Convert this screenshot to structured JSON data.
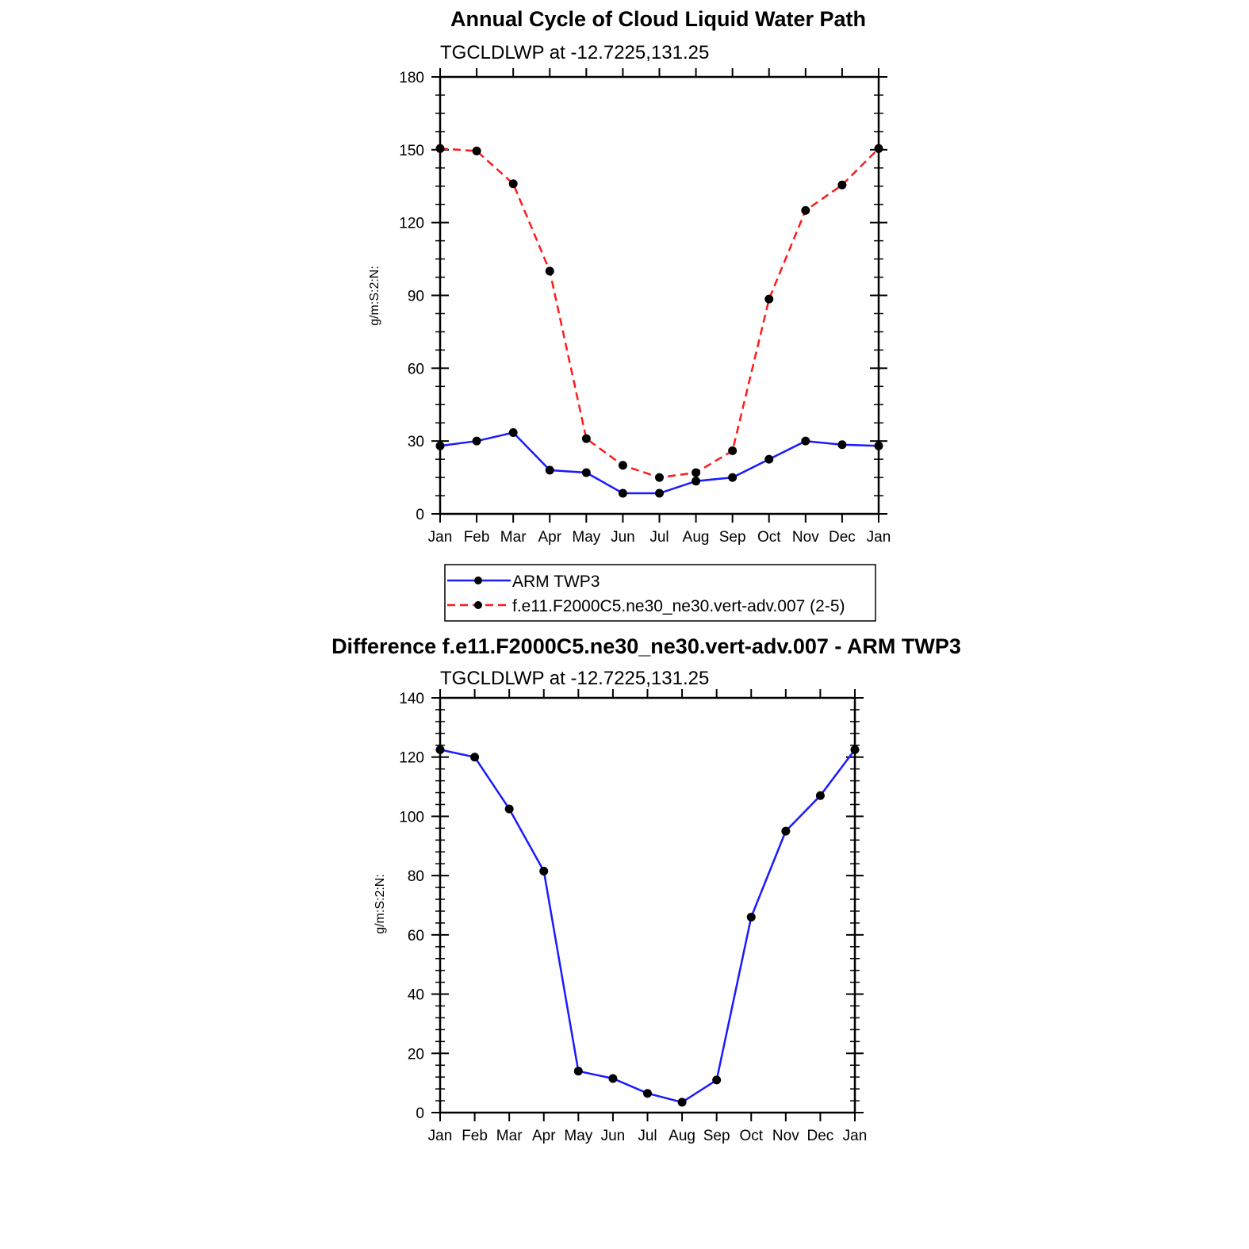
{
  "chart_data": [
    {
      "type": "line",
      "title": "Annual Cycle of Cloud Liquid Water Path",
      "subtitle": "TGCLDLWP at -12.7225,131.25",
      "xlabel": "",
      "ylabel": "g/m:S:2:N:",
      "categories": [
        "Jan",
        "Feb",
        "Mar",
        "Apr",
        "May",
        "Jun",
        "Jul",
        "Aug",
        "Sep",
        "Oct",
        "Nov",
        "Dec",
        "Jan"
      ],
      "ylim": [
        0,
        180
      ],
      "yticks": [
        0,
        30,
        60,
        90,
        120,
        150,
        180
      ],
      "grid": false,
      "legend_position": "bottom",
      "series": [
        {
          "name": "ARM TWP3",
          "color": "#1a1aff",
          "dashed": false,
          "values": [
            28,
            30,
            33.5,
            18,
            17,
            8.5,
            8.5,
            13.5,
            15,
            22.5,
            30,
            28.5,
            28
          ]
        },
        {
          "name": "f.e11.F2000C5.ne30_ne30.vert-adv.007 (2-5)",
          "color": "#ff1a1a",
          "dashed": true,
          "values": [
            150.5,
            149.5,
            136,
            100,
            31,
            20,
            15,
            17,
            26,
            88.5,
            125,
            135.5,
            150.5
          ]
        }
      ]
    },
    {
      "type": "line",
      "title": "Difference f.e11.F2000C5.ne30_ne30.vert-adv.007 - ARM TWP3",
      "subtitle": "TGCLDLWP at -12.7225,131.25",
      "xlabel": "",
      "ylabel": "g/m:S:2:N:",
      "categories": [
        "Jan",
        "Feb",
        "Mar",
        "Apr",
        "May",
        "Jun",
        "Jul",
        "Aug",
        "Sep",
        "Oct",
        "Nov",
        "Dec",
        "Jan"
      ],
      "ylim": [
        0,
        140
      ],
      "yticks": [
        0,
        20,
        40,
        60,
        80,
        100,
        120,
        140
      ],
      "grid": false,
      "series": [
        {
          "color": "#1a1aff",
          "dashed": false,
          "values": [
            122.5,
            120,
            102.5,
            81.5,
            14,
            11.5,
            6.5,
            3.5,
            11,
            66,
            95,
            107,
            122.5
          ]
        }
      ]
    }
  ]
}
